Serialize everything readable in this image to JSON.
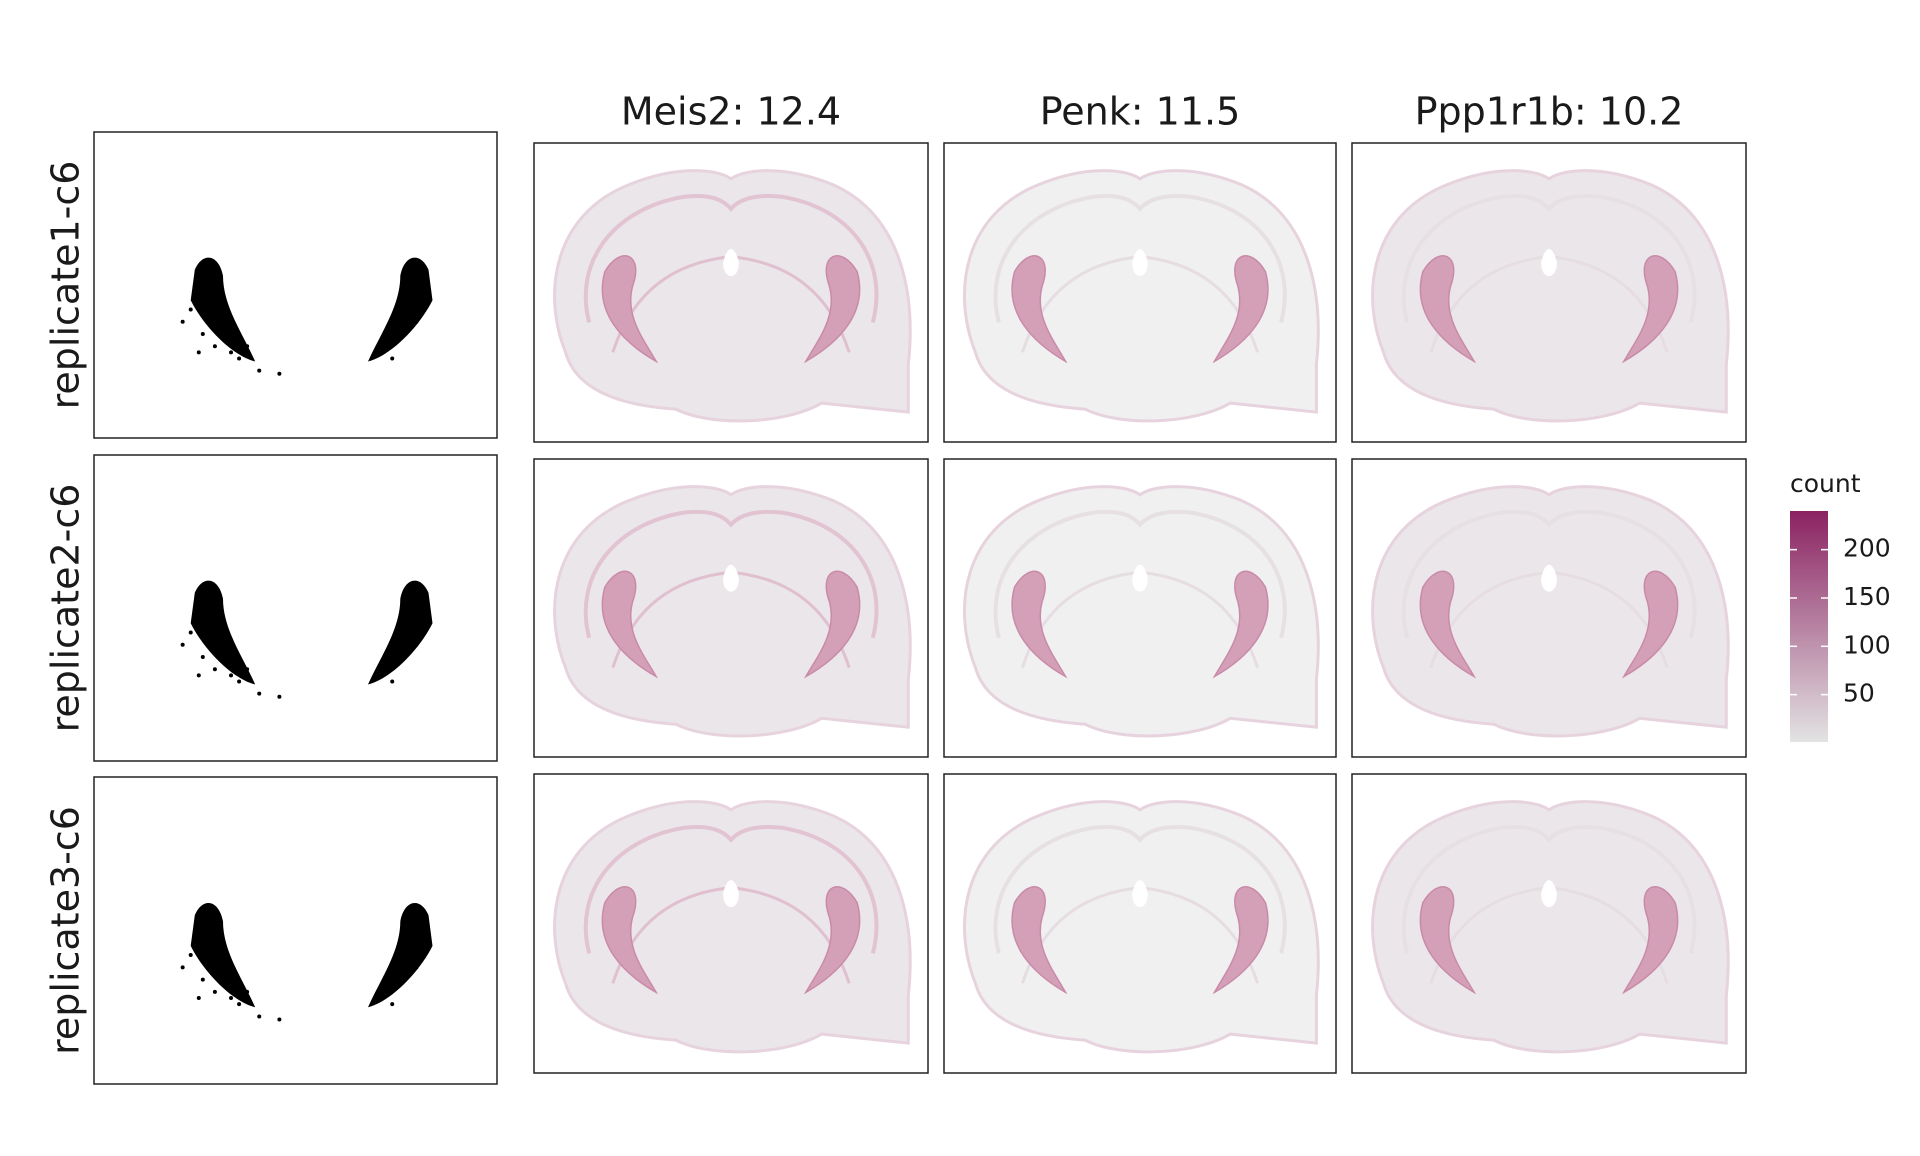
{
  "columns": [
    "Meis2: 12.4",
    "Penk: 11.5",
    "Ppp1r1b: 10.2"
  ],
  "rows": [
    "replicate1-c6",
    "replicate2-c6",
    "replicate3-c6"
  ],
  "colorbar": {
    "title": "count",
    "ticks": [
      50,
      100,
      150,
      200
    ],
    "lim": [
      1,
      240
    ],
    "low_color": "#e3e3e3",
    "high_color": "#8b2262"
  }
}
